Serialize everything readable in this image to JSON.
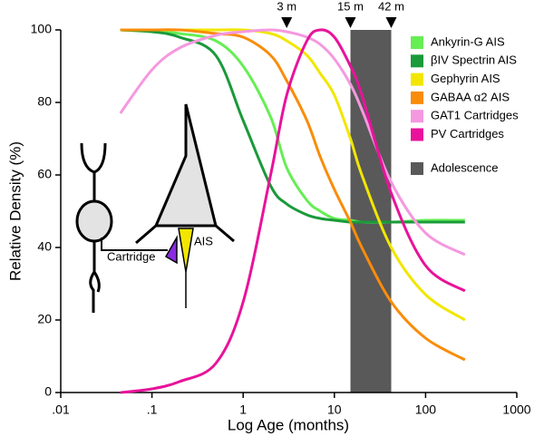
{
  "chart_data": {
    "type": "line",
    "x_label": "Log Age (months)",
    "y_label": "Relative Density (%)",
    "log_x": true,
    "xlim": [
      0.01,
      1000
    ],
    "ylim": [
      0,
      100
    ],
    "xticks": [
      {
        "value": 0.01,
        "label": ".01"
      },
      {
        "value": 0.1,
        "label": ".1"
      },
      1,
      10,
      100,
      1000
    ],
    "yticks": [
      0,
      20,
      40,
      60,
      80,
      100
    ],
    "x": [
      0.045,
      0.1,
      0.2,
      0.5,
      1,
      2,
      3,
      5,
      7,
      10,
      15,
      20,
      42,
      100,
      270
    ],
    "series": [
      {
        "name": "Ankyrin-G AIS",
        "color": "#66ee55",
        "values": [
          100,
          99.5,
          99,
          97,
          90,
          76,
          62,
          53,
          50,
          48,
          47.5,
          47,
          47,
          47.5,
          47.5
        ]
      },
      {
        "name": "βIV Spectrin AIS",
        "color": "#1a9a3a",
        "values": [
          100,
          99.5,
          98,
          93,
          75,
          57,
          52,
          49,
          48,
          47.5,
          47,
          47,
          47,
          47,
          47
        ]
      },
      {
        "name": "Gephyrin AIS",
        "color": "#f2e600",
        "values": [
          100,
          100,
          100,
          100,
          100,
          99,
          97,
          93,
          88,
          82,
          70,
          60,
          40,
          27,
          20
        ]
      },
      {
        "name": "GABAA α2 AIS",
        "color": "#f98c0a",
        "values": [
          100,
          100,
          100,
          99,
          98,
          93,
          86,
          75,
          65,
          56,
          47,
          40,
          25,
          15,
          9
        ]
      },
      {
        "name": "GAT1 Cartridges",
        "color": "#f598e0",
        "values": [
          77,
          89,
          95,
          98.5,
          99.5,
          100,
          99.5,
          98,
          96,
          92,
          85,
          78,
          58,
          44,
          38
        ]
      },
      {
        "name": "PV Cartridges",
        "color": "#e8139a",
        "values": [
          0,
          1,
          3,
          8,
          25,
          60,
          82,
          97,
          100,
          98,
          90,
          82,
          55,
          35,
          28
        ]
      }
    ],
    "band": {
      "x": [
        15,
        42
      ],
      "label": "Adolescence",
      "color": "#595959"
    },
    "annotations": [
      {
        "x": 3,
        "label": "3 m"
      },
      {
        "x": 15,
        "label": "15 m"
      },
      {
        "x": 42,
        "label": "42 m"
      }
    ],
    "inset_labels": [
      "Cartridge",
      "AIS"
    ]
  }
}
